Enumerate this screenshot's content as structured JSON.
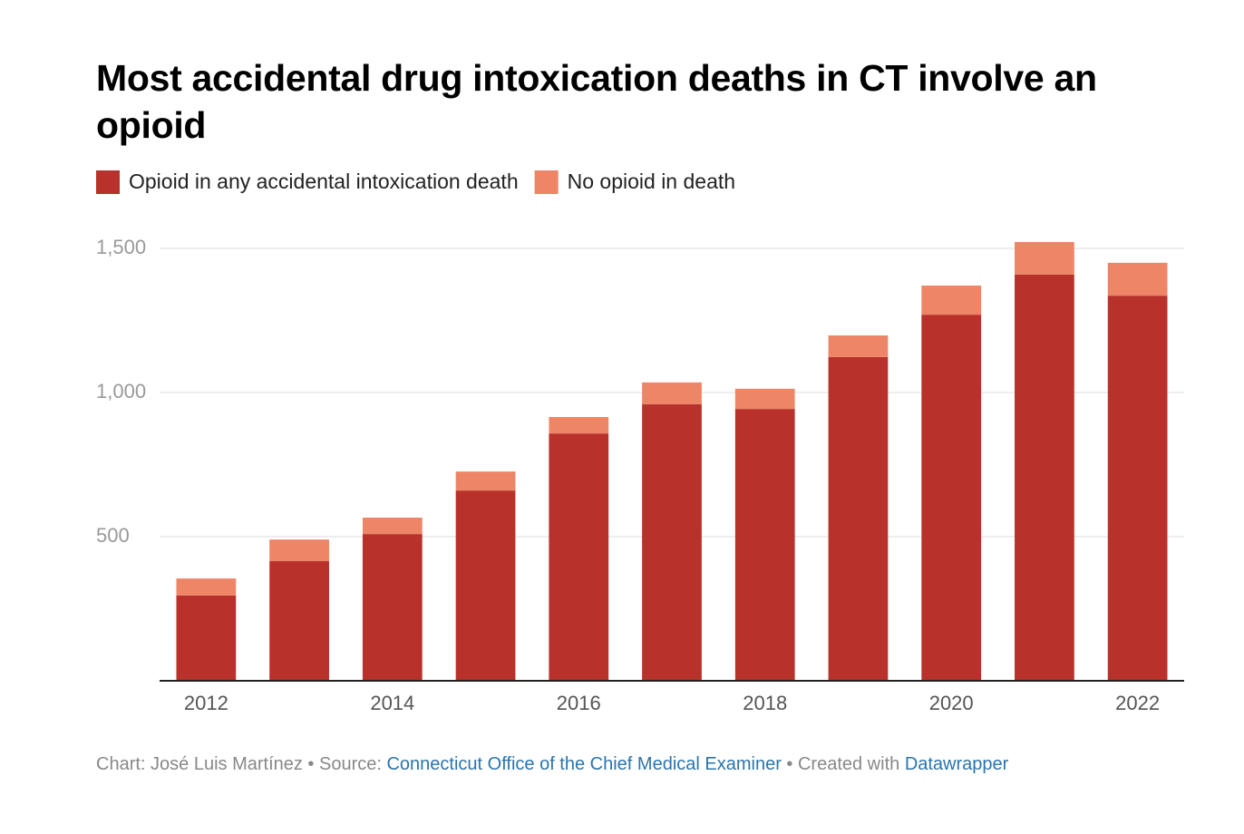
{
  "chart_data": {
    "type": "stacked_bar",
    "title": "Most accidental drug intoxication deaths in CT involve an opioid",
    "categories": [
      "2012",
      null,
      "2014",
      null,
      "2016",
      null,
      "2018",
      null,
      "2020",
      null,
      "2022"
    ],
    "series": [
      {
        "name": "Opioid in any accidental intoxication death",
        "color": "#b8312a",
        "values": [
          296,
          415,
          509,
          660,
          858,
          959,
          943,
          1123,
          1270,
          1409,
          1336
        ]
      },
      {
        "name": "No opioid in death",
        "color": "#ee8567",
        "values": [
          59,
          75,
          57,
          66,
          57,
          76,
          70,
          75,
          101,
          113,
          114
        ]
      }
    ],
    "ylim": [
      0,
      1550
    ],
    "yticks": [
      500,
      {
        "value": 1000,
        "label": "1,000"
      },
      {
        "value": 1500,
        "label": "1,500"
      }
    ],
    "grid": true,
    "legend": "top-left",
    "footer": [
      {
        "text": "Chart: José Luis Martínez • Source: "
      },
      {
        "text": "Connecticut Office of the Chief Medical Examiner",
        "link": true
      },
      {
        "text": " • Created with "
      },
      {
        "text": "Datawrapper",
        "link": true
      }
    ]
  }
}
